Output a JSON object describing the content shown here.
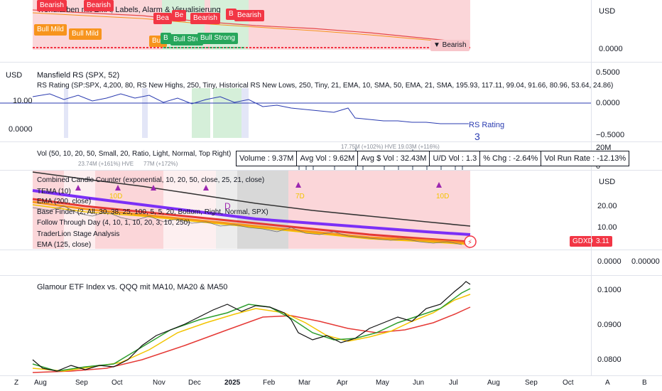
{
  "pane1": {
    "title": "Trendfarben mit EMA, Labels, Alarm & Visualisierung",
    "currency": "USD",
    "scale_value": "0.0000",
    "tags": [
      {
        "text": "Bearish",
        "kind": "bear"
      },
      {
        "text": "Bull Mild",
        "kind": "bullm"
      },
      {
        "text": "Bull Mild",
        "kind": "bullm"
      },
      {
        "text": "Bearish",
        "kind": "bear"
      },
      {
        "text": "Bea",
        "kind": "bear"
      },
      {
        "text": "Be",
        "kind": "bear"
      },
      {
        "text": "Bearish",
        "kind": "bear"
      },
      {
        "text": "Bearish",
        "kind": "bear"
      },
      {
        "text": "B",
        "kind": "bear"
      },
      {
        "text": "Bull",
        "kind": "bullm"
      },
      {
        "text": "B",
        "kind": "bulls"
      },
      {
        "text": "Bull Stro",
        "kind": "bulls"
      },
      {
        "text": "Bull Strong",
        "kind": "bulls"
      },
      {
        "text": "▼ Bearish",
        "kind": "plain"
      }
    ]
  },
  "pane2": {
    "currency": "USD",
    "title": "Mansfield RS (SPX, 52)",
    "subtitle": "RS Rating (SP:SPX, 4,200, 80, RS New Highs, 250, Tiny, Historical RS New Lows, 250, Tiny, 21, EMA, 10, SMA, 50, EMA, 21, SMA, 195.93, 117.11, 99.04, 91.66, 80.96, 53.64, 24.86)",
    "left_values": [
      "10.00",
      "0.0000"
    ],
    "scale_values": [
      "0.5000",
      "0.0000",
      "−0.5000"
    ],
    "rs_label": "RS Rating",
    "rs_value": "3"
  },
  "pane3": {
    "title": "Vol (50, 10, 20, 50, Small, 20, Ratio, Light, Normal, Top Right)",
    "scale_values": [
      "20M",
      "0"
    ],
    "info_cells": [
      "Volume : 9.37M",
      "Avg Vol : 9.62M",
      "Avg $ Vol : 32.43M",
      "U/D Vol : 1.3",
      "% Chg : -2.64%",
      "Vol Run Rate : -12.13%"
    ],
    "faint_labels": [
      "17.75M (+102%) HVE",
      "19.03M (+116%)",
      "23.74M (+161%) HVE",
      "77M (+172%)"
    ]
  },
  "pane4": {
    "currency": "USD",
    "indicators": [
      "Combined Candle Counter (exponential, 10, 20, 50, close, 25, 21, close)",
      "TEMA (10)",
      "EMA (200, close)",
      "Base Finder (2, All, 30, 38, 25, 100, 5, 5, 20, Bottom, Right, Normal, SPX)",
      "Follow Through Day (4, 10, 1, 10, 20, 3, 10, 250)",
      "TraderLion Stage Analysis",
      "EMA (125, close)"
    ],
    "scale_values": [
      "20.00",
      "10.00"
    ],
    "ticker": "GDXD",
    "price": "3.11",
    "marker": "D",
    "count_labels": [
      "7D",
      "10D",
      "10D"
    ]
  },
  "pane5": {
    "scale_values": [
      "0.0000",
      "0.00000"
    ]
  },
  "pane6": {
    "title": "Glamour ETF Index vs. QQQ mit MA10, MA20 & MA50",
    "scale_values": [
      "0.1000",
      "0.0900",
      "0.0800"
    ]
  },
  "time_axis": {
    "labels": [
      "Aug",
      "Sep",
      "Oct",
      "Nov",
      "Dec",
      "2025",
      "Feb",
      "Mar",
      "Apr",
      "May",
      "Jun",
      "Jul",
      "Aug",
      "Sep",
      "Oct"
    ],
    "left_letter": "Z",
    "right_letters": [
      "A",
      "B"
    ]
  },
  "colors": {
    "bear_bg": "#fbd6d9",
    "bull_bg": "#d5efd9",
    "line_blue": "#2a3bb0",
    "ema_purple": "#7b2ff7",
    "ema_black": "#333333",
    "ma_green": "#2e9e2e",
    "ma_yellow": "#f3c400",
    "ma_red": "#e53935"
  }
}
